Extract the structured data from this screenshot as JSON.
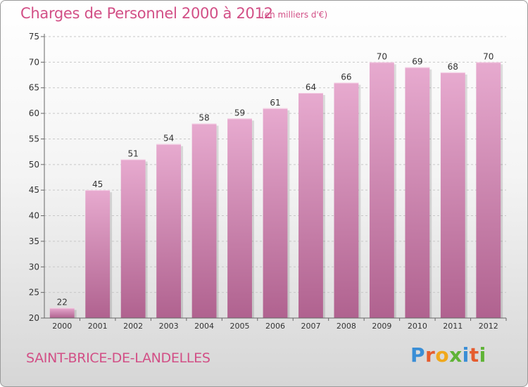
{
  "title": "Charges de Personnel 2000 à 2012",
  "unit": "(en milliers d'€)",
  "commune": "SAINT-BRICE-DE-LANDELLES",
  "logo": {
    "letters": [
      {
        "char": "P",
        "color": "#3a8ed6"
      },
      {
        "char": "r",
        "color": "#e55c2f"
      },
      {
        "char": "o",
        "color": "#f0a81c"
      },
      {
        "char": "x",
        "color": "#5fb336"
      },
      {
        "char": "i",
        "color": "#3a8ed6"
      },
      {
        "char": "t",
        "color": "#e55c2f"
      },
      {
        "char": "i",
        "color": "#5fb336"
      }
    ]
  },
  "chart_data": {
    "type": "bar",
    "categories": [
      "2000",
      "2001",
      "2002",
      "2003",
      "2004",
      "2005",
      "2006",
      "2007",
      "2008",
      "2009",
      "2010",
      "2011",
      "2012"
    ],
    "values": [
      22,
      45,
      51,
      54,
      58,
      59,
      61,
      64,
      66,
      70,
      69,
      68,
      70
    ],
    "ylim": [
      20,
      75
    ],
    "yticks": [
      20,
      25,
      30,
      35,
      40,
      45,
      50,
      55,
      60,
      65,
      70,
      75
    ],
    "grid": true,
    "bar_color_top": "#e7aacf",
    "bar_color_bottom": "#b0628f"
  }
}
